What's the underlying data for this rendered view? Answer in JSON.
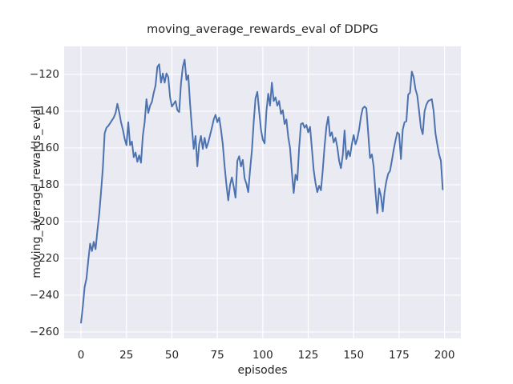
{
  "figure": {
    "background": "#ffffff",
    "axes_background": "#eaeaf2",
    "grid_color": "#ffffff",
    "text_color": "#262626",
    "line_color": "#4c72b0"
  },
  "chart_data": {
    "type": "line",
    "style": "seaborn-darkgrid",
    "title": "moving_average_rewards_eval of DDPG",
    "xlabel": "episodes",
    "ylabel": "moving_average_rewards_eval",
    "x": "episode index 0-199 (one point per episode)",
    "xlim": [
      -9.3,
      209.0
    ],
    "ylim": [
      -263.5,
      -104.8
    ],
    "xticks": [
      0,
      25,
      50,
      75,
      100,
      125,
      150,
      175,
      200
    ],
    "yticks": [
      -120,
      -140,
      -160,
      -180,
      -200,
      -220,
      -240,
      -260
    ],
    "xtick_labels": [
      "0",
      "25",
      "50",
      "75",
      "100",
      "125",
      "150",
      "175",
      "200"
    ],
    "ytick_labels": [
      "−120",
      "−140",
      "−160",
      "−180",
      "−200",
      "−220",
      "−240",
      "−260"
    ],
    "grid": true,
    "legend": false,
    "series": [
      {
        "name": "moving_average_rewards_eval",
        "color": "#4c72b0",
        "values": [
          -255,
          -246,
          -235.5,
          -231,
          -221,
          -212,
          -216,
          -211,
          -215,
          -205,
          -196,
          -184,
          -171,
          -152,
          -149,
          -148,
          -146.5,
          -145,
          -143.5,
          -141,
          -136,
          -140.5,
          -146,
          -150,
          -155,
          -158.5,
          -146,
          -158.5,
          -156.5,
          -165,
          -162.5,
          -167.5,
          -164,
          -168,
          -153.5,
          -146,
          -133.5,
          -141,
          -137,
          -135,
          -130,
          -126,
          -116,
          -114.5,
          -124.5,
          -119.5,
          -124.5,
          -119.5,
          -121.5,
          -132.5,
          -137.5,
          -136,
          -134.5,
          -139.5,
          -140.5,
          -125,
          -116,
          -112,
          -123,
          -120.5,
          -136,
          -149,
          -160.5,
          -153.5,
          -170,
          -158,
          -153.5,
          -160.5,
          -154.5,
          -160,
          -157,
          -153,
          -149,
          -144.5,
          -142,
          -146,
          -143.5,
          -150,
          -158,
          -170,
          -180,
          -188.5,
          -180,
          -176,
          -181,
          -187,
          -167,
          -164.5,
          -170,
          -166.5,
          -176.5,
          -179.5,
          -184,
          -172,
          -161.5,
          -146,
          -133,
          -129.5,
          -140,
          -150,
          -155.5,
          -157.5,
          -140,
          -130.5,
          -137,
          -124.5,
          -134.5,
          -132.5,
          -137,
          -134.5,
          -141.5,
          -139.5,
          -147,
          -144.5,
          -154,
          -160,
          -173,
          -184.5,
          -174.5,
          -177.5,
          -160,
          -147,
          -146.5,
          -149,
          -147.5,
          -151.5,
          -148.5,
          -160,
          -172,
          -179,
          -184,
          -180.5,
          -183,
          -172,
          -159,
          -148.5,
          -143,
          -153.5,
          -151.5,
          -157,
          -154.5,
          -159.5,
          -167,
          -171,
          -164,
          -150.5,
          -166,
          -161.5,
          -164.5,
          -158,
          -153,
          -158,
          -155,
          -150,
          -143,
          -138.5,
          -137.5,
          -138.5,
          -152,
          -165.5,
          -163.5,
          -170,
          -184,
          -195.5,
          -182,
          -186,
          -194.5,
          -184,
          -178,
          -174,
          -172.5,
          -167,
          -161,
          -156,
          -151.5,
          -152.5,
          -166,
          -150,
          -146,
          -145.5,
          -131,
          -130,
          -118.5,
          -121.5,
          -128,
          -131.5,
          -140,
          -149,
          -152.5,
          -140,
          -136.5,
          -134.5,
          -134,
          -133.5,
          -140,
          -152,
          -158,
          -163.5,
          -167,
          -182.5
        ]
      }
    ]
  }
}
